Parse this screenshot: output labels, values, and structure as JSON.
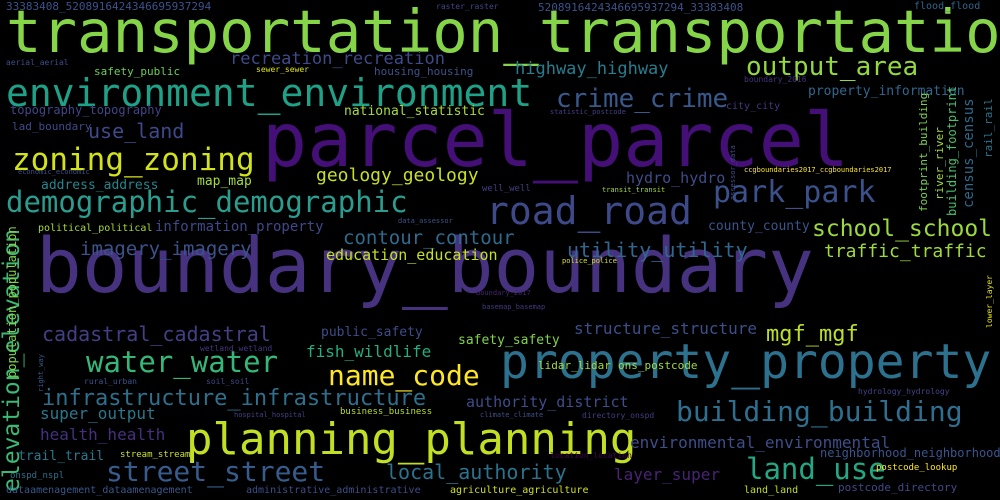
{
  "words": [
    {
      "text": "transportation_transportation",
      "color": "#86d549"
    },
    {
      "text": "parcel_parcel",
      "color": "#440f76"
    },
    {
      "text": "boundary_boundary",
      "color": "#46327e"
    },
    {
      "text": "environment_environment",
      "color": "#1fa187"
    },
    {
      "text": "property_property",
      "color": "#2c718e"
    },
    {
      "text": "planning_planning",
      "color": "#c2df23"
    },
    {
      "text": "road_road",
      "color": "#3e4989"
    },
    {
      "text": "demographic_demographic",
      "color": "#2a9d8e"
    },
    {
      "text": "zoning_zoning",
      "color": "#d2e21b"
    },
    {
      "text": "crime_crime",
      "color": "#38598c"
    },
    {
      "text": "output_area",
      "color": "#94d840"
    },
    {
      "text": "park_park",
      "color": "#3b518b"
    },
    {
      "text": "water_water",
      "color": "#35b779"
    },
    {
      "text": "building_building",
      "color": "#2e6e8e"
    },
    {
      "text": "name_code",
      "color": "#fde725"
    },
    {
      "text": "street_street",
      "color": "#365c8d"
    },
    {
      "text": "land_use",
      "color": "#22a884"
    },
    {
      "text": "school_school",
      "color": "#9bd93c"
    },
    {
      "text": "infrastructure_infrastructure",
      "color": "#2d708e"
    },
    {
      "text": "elevation_elevation",
      "color": "#3aba76"
    },
    {
      "text": "cadastral_cadastral",
      "color": "#423f85"
    },
    {
      "text": "local_authority",
      "color": "#2c728e"
    },
    {
      "text": "use_land",
      "color": "#3f4889"
    },
    {
      "text": "imagery_imagery",
      "color": "#3b528b"
    },
    {
      "text": "utility_utility",
      "color": "#31668e"
    },
    {
      "text": "contour_contour",
      "color": "#2f6b8e"
    },
    {
      "text": "mgf_mgf",
      "color": "#bddf26"
    },
    {
      "text": "traffic_traffic",
      "color": "#a0da39"
    },
    {
      "text": "geology_geology",
      "color": "#c8e020"
    },
    {
      "text": "highway_highway",
      "color": "#287d8e"
    },
    {
      "text": "recreation_recreation",
      "color": "#3f4a8a"
    },
    {
      "text": "health_health",
      "color": "#46307e"
    },
    {
      "text": "super_output",
      "color": "#2a788e"
    },
    {
      "text": "environmental_environmental",
      "color": "#3d4e8a"
    },
    {
      "text": "fish_wildlife",
      "color": "#26ad81"
    },
    {
      "text": "structure_structure",
      "color": "#3c4f8a"
    },
    {
      "text": "layer_super",
      "color": "#482475"
    },
    {
      "text": "education_education",
      "color": "#c5e021"
    },
    {
      "text": "hydro_hydro",
      "color": "#3e4c8a"
    },
    {
      "text": "authority_district",
      "color": "#3d4d8a"
    },
    {
      "text": "information_property",
      "color": "#3f4889"
    },
    {
      "text": "map_map",
      "color": "#a5db36"
    },
    {
      "text": "address_address",
      "color": "#24868e"
    },
    {
      "text": "public_safety",
      "color": "#3e4c8a"
    },
    {
      "text": "safety_safety",
      "color": "#81d34d"
    },
    {
      "text": "county_county",
      "color": "#39558c"
    },
    {
      "text": "property_information",
      "color": "#31678e"
    },
    {
      "text": "trail_trail",
      "color": "#2a788e"
    },
    {
      "text": "national_statistic",
      "color": "#a8db34"
    },
    {
      "text": "neighborhood_neighborhood",
      "color": "#3a548c"
    },
    {
      "text": "topography_topography",
      "color": "#404688"
    },
    {
      "text": "housing_housing",
      "color": "#3b528b"
    },
    {
      "text": "census_census",
      "color": "#2f6b8e"
    },
    {
      "text": "population_population",
      "color": "#85d54a"
    },
    {
      "text": "safety_public",
      "color": "#6ccd5a"
    },
    {
      "text": "lad_boundary",
      "color": "#3e4a89"
    },
    {
      "text": "rail_rail",
      "color": "#2a788e"
    },
    {
      "text": "river_river",
      "color": "#a5db36"
    },
    {
      "text": "footprint_building",
      "color": "#7ad151"
    },
    {
      "text": "building_footprint",
      "color": "#4ac16d"
    },
    {
      "text": "lidar_lidar",
      "color": "#a2da37"
    },
    {
      "text": "ons_postcode",
      "color": "#a0da39"
    },
    {
      "text": "political_political",
      "color": "#a8db34"
    },
    {
      "text": "business_business",
      "color": "#b8de29"
    },
    {
      "text": "postcode_lookup",
      "color": "#fde725"
    },
    {
      "text": "land_land",
      "color": "#c2df23"
    },
    {
      "text": "postcode_directory",
      "color": "#3e4a89"
    },
    {
      "text": "agriculture_agriculture",
      "color": "#d0e11c"
    },
    {
      "text": "administrative_administrative",
      "color": "#3d4e8a"
    },
    {
      "text": "dataamenagement_dataamenagement",
      "color": "#38598c"
    },
    {
      "text": "onspd_nspl",
      "color": "#2d718e"
    },
    {
      "text": "stream_stream",
      "color": "#cde11d"
    },
    {
      "text": "flood_flood",
      "color": "#31668e"
    },
    {
      "text": "33383408_5208916424346695937294",
      "color": "#3b528b"
    },
    {
      "text": "5208916424346695937294_33383408",
      "color": "#3b528b"
    },
    {
      "text": "raster_raster",
      "color": "#404688"
    },
    {
      "text": "sewer_sewer",
      "color": "#dde318"
    },
    {
      "text": "aerial_aerial",
      "color": "#3e4c8a"
    },
    {
      "text": "economic_economic",
      "color": "#3d4e8a"
    },
    {
      "text": "city_city",
      "color": "#453781"
    },
    {
      "text": "boundary_2016",
      "color": "#46327e"
    },
    {
      "text": "statistic_postcode",
      "color": "#433e85"
    },
    {
      "text": "well_well",
      "color": "#433e85"
    },
    {
      "text": "transit_transit",
      "color": "#a5db36"
    },
    {
      "text": "ccgboundaries2017_ccgboundaries2017",
      "color": "#fde725"
    },
    {
      "text": "data_assessor",
      "color": "#3b528b"
    },
    {
      "text": "assessor_data",
      "color": "#3e4c8a"
    },
    {
      "text": "police_police",
      "color": "#d5e21a"
    },
    {
      "text": "boundary_2017",
      "color": "#482475"
    },
    {
      "text": "basemap_basemap",
      "color": "#453781"
    },
    {
      "text": "wetland_wetland",
      "color": "#453781"
    },
    {
      "text": "rural_urban",
      "color": "#3b528b"
    },
    {
      "text": "soil_soil",
      "color": "#404688"
    },
    {
      "text": "right_way",
      "color": "#38598c"
    },
    {
      "text": "hospital_hospital",
      "color": "#414487"
    },
    {
      "text": "climate_climate",
      "color": "#3b528b"
    },
    {
      "text": "directory_onspd",
      "color": "#433e85"
    },
    {
      "text": "location_location",
      "color": "#440154"
    },
    {
      "text": "hydrology_hydrology",
      "color": "#404688"
    },
    {
      "text": "lower_layer",
      "color": "#e5e419"
    }
  ]
}
